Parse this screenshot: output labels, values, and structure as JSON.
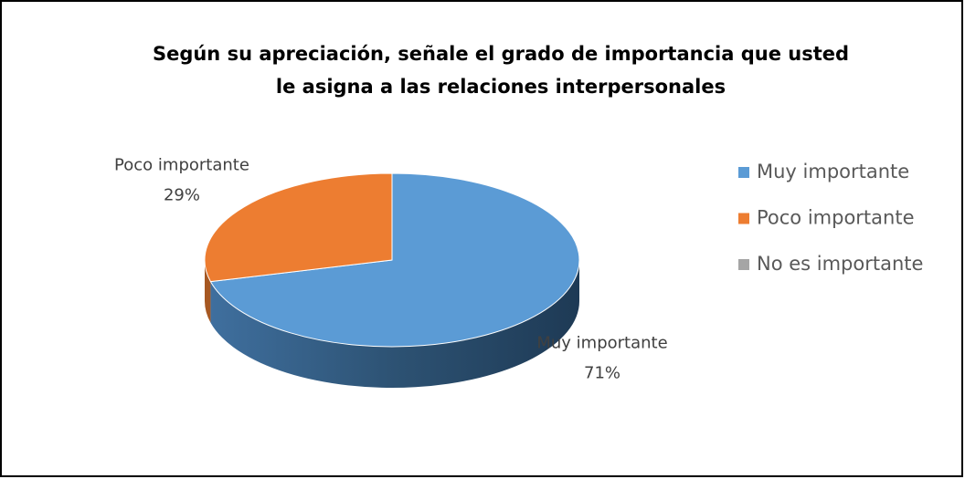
{
  "chart_data": {
    "type": "pie",
    "title": [
      "Según su apreciación, señale el grado de importancia que usted",
      "le asigna a las relaciones interpersonales"
    ],
    "categories": [
      "Muy importante",
      "Poco importante",
      "No es importante"
    ],
    "values": [
      71,
      29,
      0
    ],
    "value_labels": [
      "71%",
      "29%",
      null
    ],
    "colors": [
      "#5b9bd5",
      "#ed7d31",
      "#a5a5a5"
    ],
    "legend": "right"
  }
}
